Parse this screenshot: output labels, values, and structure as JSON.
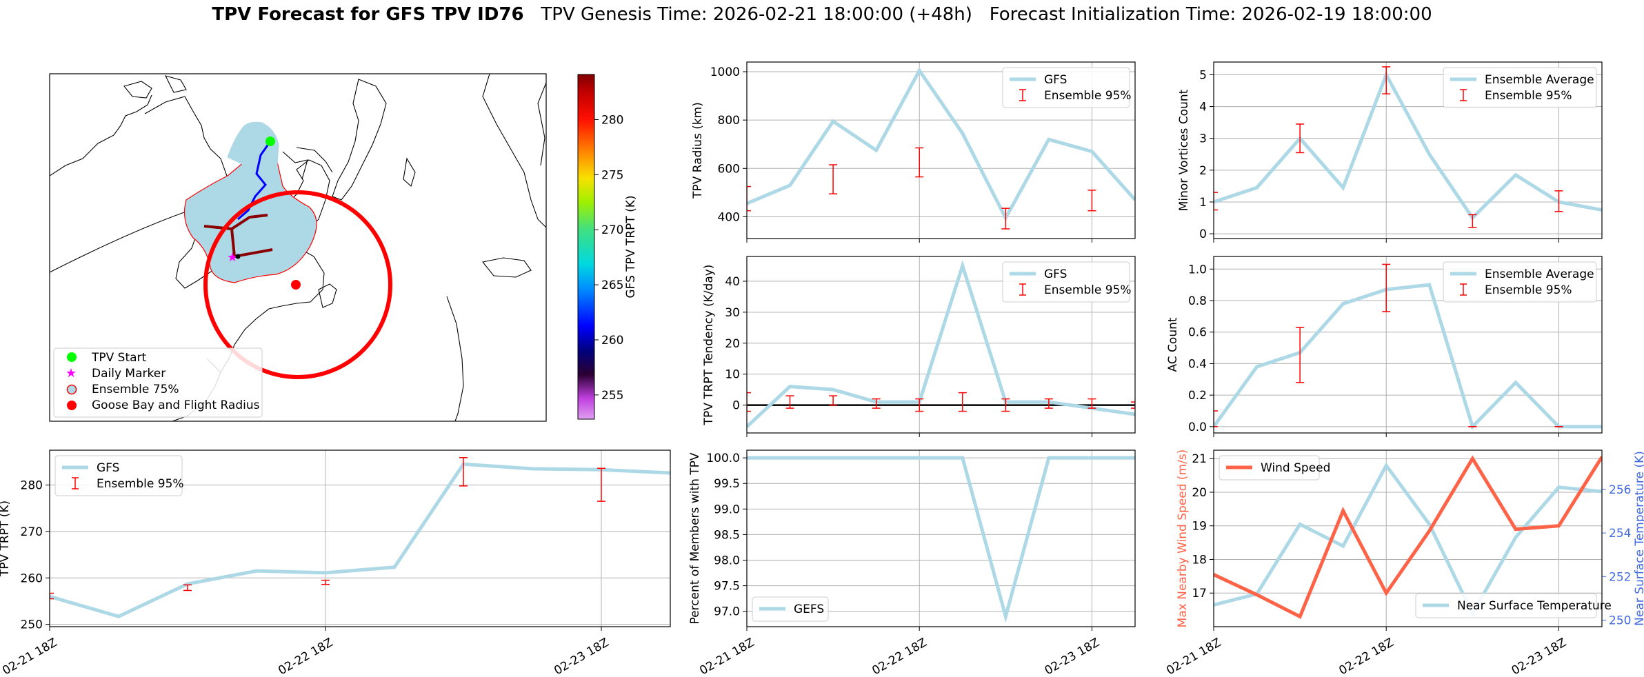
{
  "title": {
    "bold": "TPV Forecast for GFS TPV ID76",
    "genesis": "TPV Genesis Time: 2026-02-21 18:00:00 (+48h)",
    "init": "Forecast Initialization Time: 2026-02-19 18:00:00"
  },
  "colors": {
    "gfs_line": "#add8e6",
    "ensemble": "#ff0000",
    "wind": "#ff6347",
    "temp_axis": "#4169e1",
    "wind_axis": "#ff6347",
    "goose_ring": "#ff0000",
    "track_ensemble": "#8b0000",
    "track_gfs": "#0000ff",
    "start_marker": "#00ff00",
    "daily_marker": "#ff00ff"
  },
  "x_tick_labels": [
    "02-21 18Z",
    "02-22 18Z",
    "02-23 18Z"
  ],
  "map": {
    "legend": [
      "TPV Start",
      "Daily Marker",
      "Ensemble 75%",
      "Goose Bay and Flight Radius"
    ],
    "colorbar": {
      "label": "GFS TPV TRPT (K)",
      "ticks": [
        255,
        260,
        265,
        270,
        275,
        280
      ],
      "min": 252.8,
      "max": 284.1
    }
  },
  "chart_data": [
    {
      "id": "radius",
      "type": "line",
      "x": [
        0,
        6,
        12,
        18,
        24,
        30,
        36,
        42,
        48,
        54
      ],
      "ylabel": "TPV Radius (km)",
      "yticks": [
        400,
        600,
        800,
        1000
      ],
      "ylim": [
        310,
        1040
      ],
      "series": [
        {
          "name": "GFS",
          "values": [
            455,
            530,
            795,
            675,
            1005,
            745,
            395,
            720,
            670,
            470
          ]
        }
      ],
      "errorbars": {
        "name": "Ensemble 95%",
        "x": [
          0,
          12,
          24,
          36,
          48
        ],
        "low": [
          425,
          495,
          565,
          350,
          425
        ],
        "high": [
          525,
          615,
          685,
          435,
          510
        ]
      }
    },
    {
      "id": "minor",
      "type": "line",
      "x": [
        0,
        6,
        12,
        18,
        24,
        30,
        36,
        42,
        48,
        54
      ],
      "ylabel": "Minor Vortices Count",
      "yticks": [
        0,
        1,
        2,
        3,
        4,
        5
      ],
      "ylim": [
        -0.15,
        5.4
      ],
      "series": [
        {
          "name": "Ensemble Average",
          "values": [
            1.0,
            1.45,
            3.0,
            1.45,
            5.0,
            2.5,
            0.5,
            1.85,
            1.0,
            0.75
          ]
        }
      ],
      "errorbars": {
        "name": "Ensemble 95%",
        "x": [
          0,
          12,
          24,
          36,
          48
        ],
        "low": [
          0.75,
          2.55,
          4.4,
          0.2,
          0.7
        ],
        "high": [
          1.3,
          3.45,
          5.25,
          0.6,
          1.35
        ]
      }
    },
    {
      "id": "tendency",
      "type": "line",
      "x": [
        0,
        6,
        12,
        18,
        24,
        30,
        36,
        42,
        48,
        54
      ],
      "ylabel": "TPV TRPT Tendency (K/day)",
      "yticks": [
        0,
        10,
        20,
        30,
        40
      ],
      "ylim": [
        -9,
        48
      ],
      "zero_line": true,
      "series": [
        {
          "name": "GFS",
          "values": [
            -7,
            6,
            5,
            1,
            1,
            45,
            1,
            1,
            -1,
            -3
          ]
        }
      ],
      "errorbars": {
        "name": "Ensemble 95%",
        "x": [
          0,
          6,
          12,
          18,
          24,
          30,
          36,
          42,
          48,
          54
        ],
        "low": [
          -2,
          -1,
          0,
          -1,
          -2,
          -2,
          -2,
          -1,
          -1,
          -1
        ],
        "high": [
          4,
          3,
          3,
          2,
          2,
          4,
          2,
          2,
          2,
          1
        ]
      }
    },
    {
      "id": "ac",
      "type": "line",
      "x": [
        0,
        6,
        12,
        18,
        24,
        30,
        36,
        42,
        48,
        54
      ],
      "ylabel": "AC Count",
      "yticks": [
        0.0,
        0.2,
        0.4,
        0.6,
        0.8,
        1.0
      ],
      "ylim": [
        -0.04,
        1.08
      ],
      "series": [
        {
          "name": "Ensemble Average",
          "values": [
            0.0,
            0.38,
            0.47,
            0.78,
            0.87,
            0.9,
            0.0,
            0.28,
            0.0,
            0.0
          ]
        }
      ],
      "errorbars": {
        "name": "Ensemble 95%",
        "x": [
          0,
          12,
          24,
          36,
          48
        ],
        "low": [
          0.0,
          0.28,
          0.73,
          0.0,
          0.0
        ],
        "high": [
          0.1,
          0.63,
          1.03,
          0.0,
          0.0
        ]
      }
    },
    {
      "id": "trpt",
      "type": "line",
      "x": [
        0,
        6,
        12,
        18,
        24,
        30,
        36,
        42,
        48,
        54
      ],
      "ylabel": "TPV TRPT (K)",
      "yticks": [
        250,
        260,
        270,
        280
      ],
      "ylim": [
        249.5,
        287.5
      ],
      "series": [
        {
          "name": "GFS",
          "values": [
            256.0,
            251.7,
            258.7,
            261.5,
            261.1,
            262.3,
            284.5,
            283.5,
            283.3,
            282.6
          ]
        }
      ],
      "errorbars": {
        "name": "Ensemble 95%",
        "x": [
          0,
          12,
          24,
          36,
          48
        ],
        "low": [
          255.5,
          257.3,
          258.6,
          279.8,
          276.5
        ],
        "high": [
          256.7,
          258.5,
          259.5,
          285.9,
          283.6
        ]
      }
    },
    {
      "id": "members",
      "type": "line",
      "x": [
        0,
        6,
        12,
        18,
        24,
        30,
        36,
        42,
        48,
        54
      ],
      "ylabel": "Percent of Members with TPV",
      "yticks": [
        97.0,
        97.5,
        98.0,
        98.5,
        99.0,
        99.5,
        100.0
      ],
      "ylim": [
        96.7,
        100.15
      ],
      "series": [
        {
          "name": "GEFS",
          "values": [
            100,
            100,
            100,
            100,
            100,
            100,
            96.9,
            100,
            100,
            100
          ]
        }
      ]
    },
    {
      "id": "wind",
      "type": "line",
      "x": [
        0,
        6,
        12,
        18,
        24,
        30,
        36,
        42,
        48,
        54
      ],
      "ylabel": "Max Nearby Wind Speed (m/s)",
      "y2label": "Near Surface Temperature (K)",
      "yticks": [
        17,
        18,
        19,
        20,
        21
      ],
      "ylim": [
        16.0,
        21.25
      ],
      "y2ticks": [
        250,
        252,
        254,
        256
      ],
      "y2lim": [
        249.7,
        257.8
      ],
      "series": [
        {
          "name": "Wind Speed",
          "values": [
            17.55,
            16.95,
            16.3,
            19.45,
            17.0,
            18.85,
            21.0,
            18.9,
            19.0,
            21.05
          ]
        },
        {
          "name": "Near Surface Temperature",
          "axis": "right",
          "values": [
            250.7,
            251.2,
            254.4,
            253.4,
            257.1,
            254.4,
            250.3,
            253.8,
            256.1,
            255.9
          ]
        }
      ]
    }
  ]
}
